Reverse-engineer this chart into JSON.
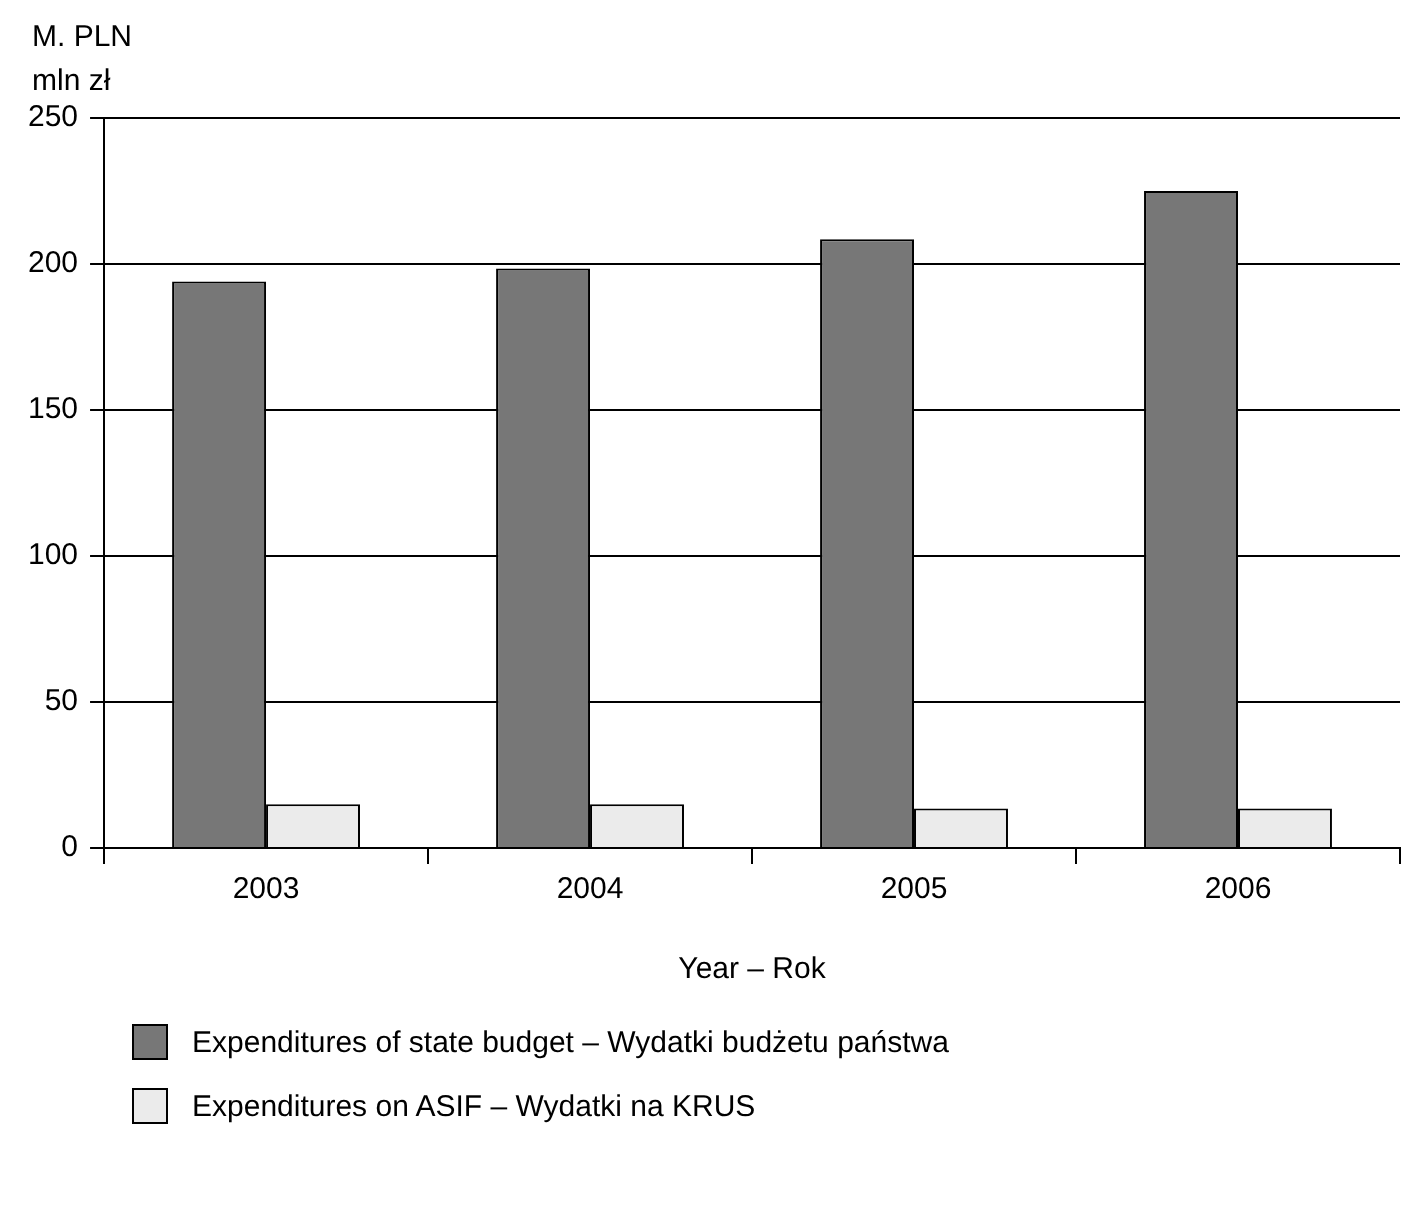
{
  "chart_data": {
    "type": "bar",
    "ylabel": "M. PLN\nmln zł",
    "xlabel": "Year – Rok",
    "categories": [
      "2003",
      "2004",
      "2005",
      "2006"
    ],
    "series": [
      {
        "name": "Expenditures of state budget – Wydatki budżetu państwa",
        "color": "#777777",
        "values": [
          194,
          198.5,
          208.5,
          225
        ]
      },
      {
        "name": "Expenditures on ASIF – Wydatki na KRUS",
        "color": "#ebebeb",
        "values": [
          15,
          15,
          13.5,
          13.5
        ]
      }
    ],
    "ylim": [
      0,
      250
    ],
    "yticks": [
      0,
      50,
      100,
      150,
      200,
      250
    ],
    "grid": "y",
    "legend": "bottom"
  }
}
